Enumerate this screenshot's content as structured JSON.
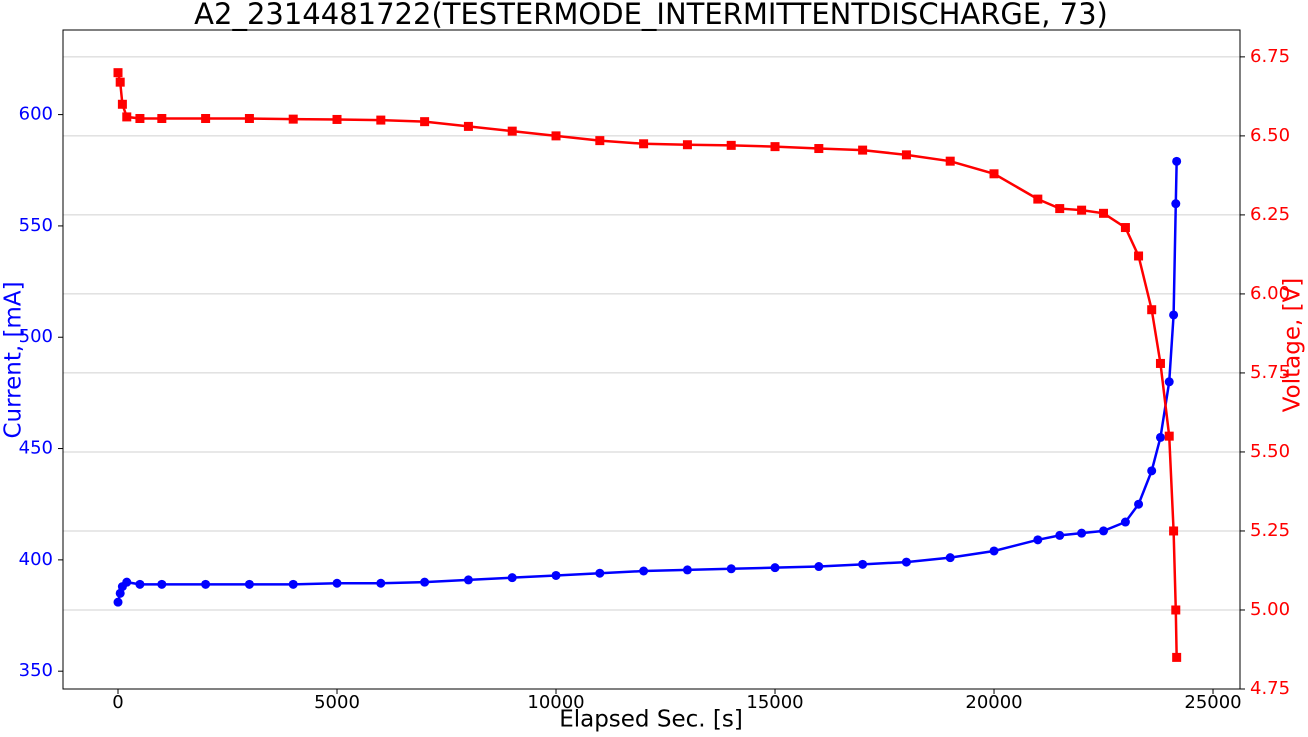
{
  "chart_data": {
    "type": "line",
    "title": "A2_2314481722(TESTERMODE_INTERMITTENTDISCHARGE, 73)",
    "xlabel": "Elapsed Sec. [s]",
    "ylabel": "Current, [mA]",
    "y2label": "Voltage, [V]",
    "x": [
      0,
      50,
      100,
      200,
      500,
      1000,
      2000,
      3000,
      4000,
      5000,
      6000,
      7000,
      8000,
      9000,
      10000,
      11000,
      12000,
      13000,
      14000,
      15000,
      16000,
      17000,
      18000,
      19000,
      20000,
      21000,
      21500,
      22000,
      22500,
      23000,
      23300,
      23600,
      23800,
      24000,
      24100,
      24150,
      24170
    ],
    "series": [
      {
        "name": "Current",
        "color": "#0000ff",
        "marker": "circle",
        "axis": "y",
        "values": [
          381,
          385,
          388,
          390,
          389,
          389,
          389,
          389,
          389,
          389.5,
          389.5,
          390,
          391,
          392,
          393,
          394,
          395,
          395.5,
          396,
          396.5,
          397,
          398,
          399,
          401,
          404,
          409,
          411,
          412,
          413,
          417,
          425,
          440,
          455,
          480,
          510,
          560,
          579
        ]
      },
      {
        "name": "Voltage",
        "color": "#ff0000",
        "marker": "square",
        "axis": "y2",
        "values": [
          6.7,
          6.67,
          6.6,
          6.56,
          6.555,
          6.555,
          6.555,
          6.555,
          6.553,
          6.552,
          6.55,
          6.545,
          6.53,
          6.515,
          6.5,
          6.485,
          6.475,
          6.472,
          6.47,
          6.466,
          6.46,
          6.455,
          6.44,
          6.42,
          6.38,
          6.3,
          6.27,
          6.265,
          6.255,
          6.21,
          6.12,
          5.95,
          5.78,
          5.55,
          5.25,
          5.0,
          4.85
        ]
      }
    ],
    "xlim": [
      -1256,
      25616
    ],
    "xticks": [
      0,
      5000,
      10000,
      15000,
      20000,
      25000
    ],
    "ylim": [
      342,
      638
    ],
    "yticks": [
      350,
      400,
      450,
      500,
      550,
      600
    ],
    "y2lim": [
      4.75,
      6.835
    ],
    "y2ticks": [
      4.75,
      {
        "value": 5,
        "label": "5.00"
      },
      5.25,
      {
        "value": 5.5,
        "label": "5.50"
      },
      5.75,
      {
        "value": 6,
        "label": "6.00"
      },
      6.25,
      {
        "value": 6.5,
        "label": "6.50"
      },
      6.75
    ],
    "grid": "y2"
  }
}
